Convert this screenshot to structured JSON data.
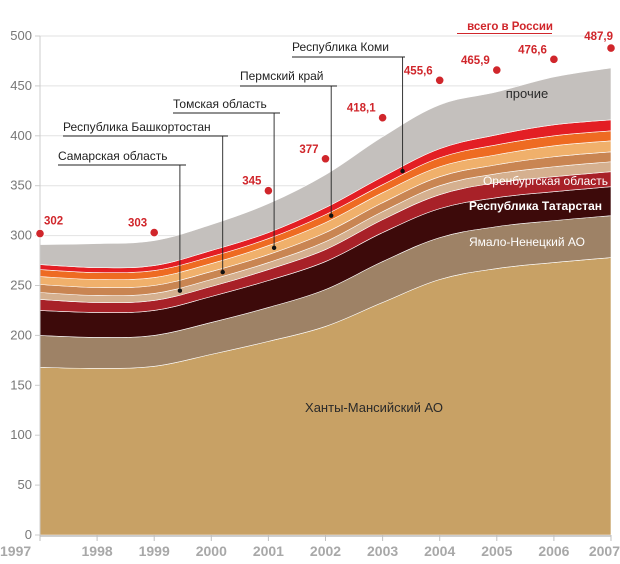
{
  "chart_data": {
    "type": "area",
    "stacked": true,
    "years": [
      "1997",
      "1998",
      "1999",
      "2000",
      "2001",
      "2002",
      "2003",
      "2004",
      "2005",
      "2006",
      "2007"
    ],
    "ylim": [
      0,
      500
    ],
    "yticks": [
      0,
      50,
      100,
      150,
      200,
      250,
      300,
      350,
      400,
      450,
      500
    ],
    "total_label": "всего в России",
    "totals": [
      {
        "year": 1997,
        "value": 302,
        "label": "302"
      },
      {
        "year": 1999,
        "value": 303,
        "label": "303"
      },
      {
        "year": 2001,
        "value": 345,
        "label": "345"
      },
      {
        "year": 2002,
        "value": 377,
        "label": "377"
      },
      {
        "year": 2003,
        "value": 418.1,
        "label": "418,1"
      },
      {
        "year": 2004,
        "value": 455.6,
        "label": "455,6"
      },
      {
        "year": 2005,
        "value": 465.9,
        "label": "465,9"
      },
      {
        "year": 2006,
        "value": 476.6,
        "label": "476,6"
      },
      {
        "year": 2007,
        "value": 487.9,
        "label": "487,9"
      }
    ],
    "series": [
      {
        "name": "Ханты-Мансийский АО",
        "color": "#c8a165",
        "values": [
          168,
          167,
          169,
          181,
          194,
          209,
          233,
          256,
          267,
          273,
          278
        ]
      },
      {
        "name": "Ямало-Ненецкий АО",
        "color": "#9e8266",
        "values": [
          32,
          31,
          31,
          32,
          34,
          37,
          41,
          42,
          42,
          42,
          42
        ]
      },
      {
        "name": "Республика Татарстан",
        "color": "#3d0a0a",
        "values": [
          25,
          25,
          25,
          26,
          27,
          28,
          29,
          29,
          29,
          29,
          29
        ]
      },
      {
        "name": "Оренбургская область",
        "color": "#a82128",
        "values": [
          11,
          10,
          10,
          10,
          11,
          12,
          13,
          14,
          15,
          15,
          15
        ]
      },
      {
        "name": "Самарская область",
        "color": "#d5b08f",
        "values": [
          7,
          7,
          7,
          7,
          7,
          8,
          8,
          9,
          9,
          10,
          10
        ]
      },
      {
        "name": "Республика Башкортостан",
        "color": "#c98552",
        "values": [
          8,
          8,
          8,
          8,
          8,
          9,
          9,
          9,
          9,
          10,
          10
        ]
      },
      {
        "name": "Томская область",
        "color": "#f0b06b",
        "values": [
          8,
          8,
          8,
          8,
          9,
          10,
          10,
          10,
          10,
          11,
          11
        ]
      },
      {
        "name": "Пермский край",
        "color": "#ee6b22",
        "values": [
          7,
          7,
          7,
          7,
          7,
          8,
          8,
          9,
          10,
          10,
          10
        ]
      },
      {
        "name": "Республика Коми",
        "color": "#e31e24",
        "values": [
          5,
          5,
          5,
          6,
          6,
          7,
          8,
          9,
          10,
          11,
          11
        ]
      },
      {
        "name": "прочие",
        "color": "#c4c0bd",
        "values": [
          20,
          24,
          25,
          26,
          29,
          33,
          40,
          44,
          43,
          48,
          52
        ]
      }
    ],
    "annotations": [
      {
        "text": "Самарская область",
        "year": 1999.45
      },
      {
        "text": "Республика Башкортостан",
        "year": 2000.2
      },
      {
        "text": "Томская область",
        "year": 2001.1
      },
      {
        "text": "Пермский край",
        "year": 2002.1
      },
      {
        "text": "Республика Коми",
        "year": 2003.35
      }
    ]
  }
}
